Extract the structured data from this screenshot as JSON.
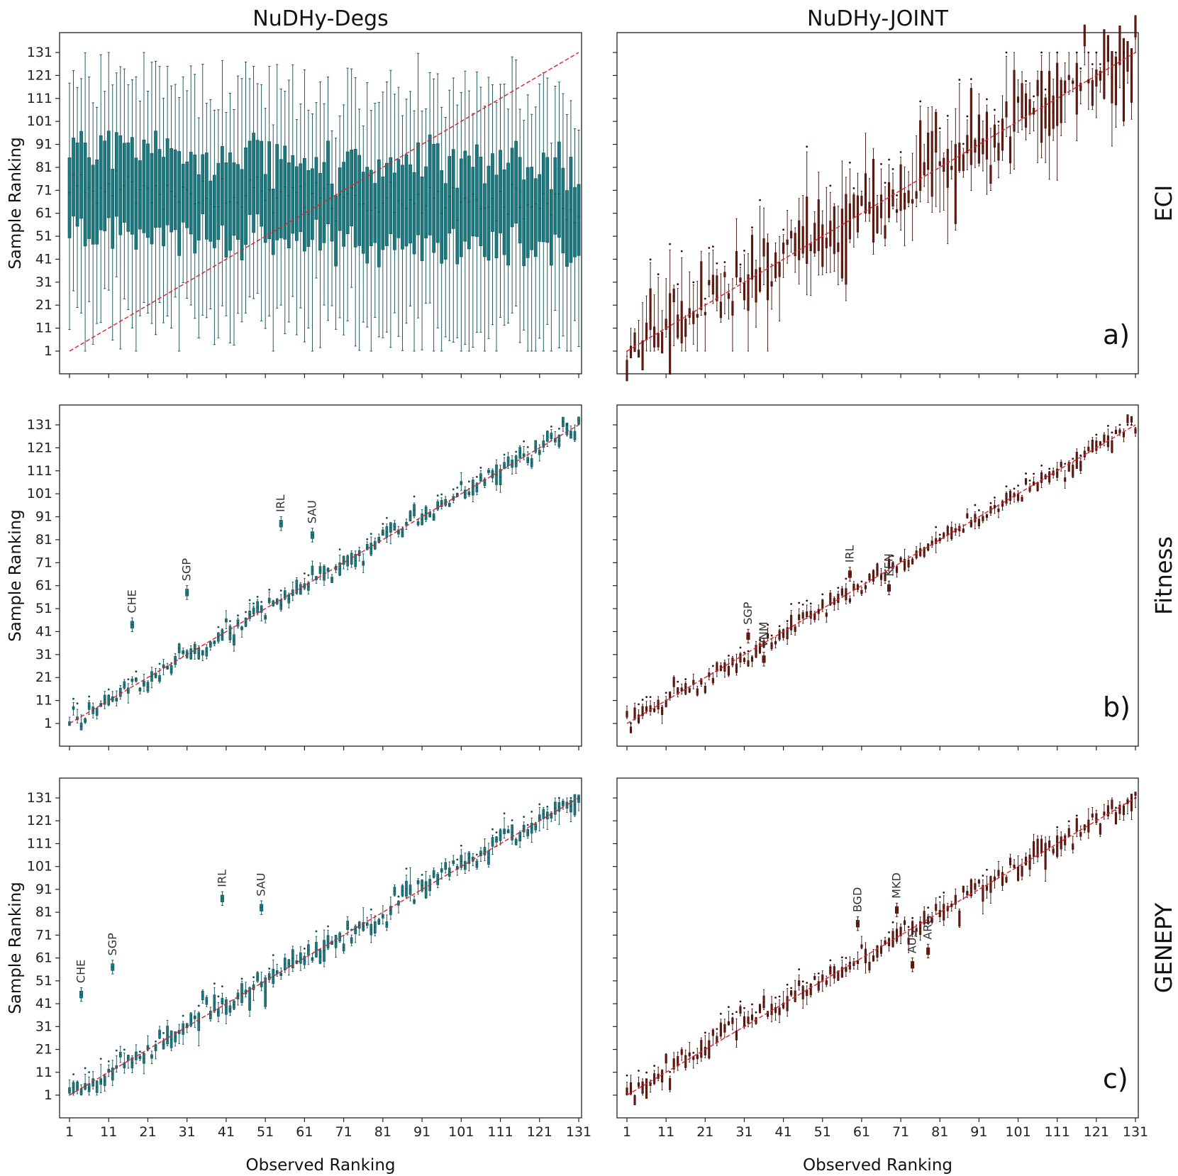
{
  "figure": {
    "column_titles": [
      "NuDHy-Degs",
      "NuDHy-JOINT"
    ],
    "row_labels": [
      "ECI",
      "Fitness",
      "GENEPY"
    ],
    "xlabel": "Observed Ranking",
    "ylabel": "Sample Ranking",
    "ticks": [
      "1",
      "11",
      "21",
      "31",
      "41",
      "51",
      "61",
      "71",
      "81",
      "91",
      "101",
      "111",
      "121",
      "131"
    ],
    "colors": {
      "degs": "#1a7a80",
      "joint": "#6b1a0f",
      "diagonal": "#e0202e"
    }
  },
  "chart_data": [
    {
      "type": "box",
      "panel": "ECI / NuDHy-Degs",
      "xlabel": "",
      "ylabel": "Sample Ranking",
      "xlim": [
        1,
        131
      ],
      "ylim": [
        1,
        131
      ],
      "reference_line": "y = x",
      "annotations": [],
      "summary": "Near-random sampling: boxes span roughly 45–95 with whiskers from ~1 to ~131 for every observed rank."
    },
    {
      "type": "box",
      "panel": "ECI / NuDHy-JOINT",
      "xlabel": "",
      "ylabel": "",
      "xlim": [
        1,
        131
      ],
      "ylim": [
        1,
        131
      ],
      "reference_line": "y = x",
      "panel_letter": "a)",
      "annotations": [],
      "summary": "Samples follow the diagonal with moderate spread (about ±10 ranks)."
    },
    {
      "type": "box",
      "panel": "Fitness / NuDHy-Degs",
      "xlabel": "",
      "ylabel": "Sample Ranking",
      "xlim": [
        1,
        131
      ],
      "ylim": [
        1,
        131
      ],
      "reference_line": "y = x",
      "annotations": [
        {
          "text": "CHE",
          "x": 17,
          "y": 44
        },
        {
          "text": "SGP",
          "x": 31,
          "y": 58
        },
        {
          "text": "IRL",
          "x": 55,
          "y": 88
        },
        {
          "text": "SAU",
          "x": 63,
          "y": 83
        }
      ]
    },
    {
      "type": "box",
      "panel": "Fitness / NuDHy-JOINT",
      "xlabel": "",
      "ylabel": "",
      "xlim": [
        1,
        131
      ],
      "ylim": [
        1,
        131
      ],
      "reference_line": "y = x",
      "panel_letter": "b)",
      "annotations": [
        {
          "text": "SGP",
          "x": 32,
          "y": 39
        },
        {
          "text": "VNM",
          "x": 36,
          "y": 29
        },
        {
          "text": "IRL",
          "x": 58,
          "y": 66
        },
        {
          "text": "KEN",
          "x": 68,
          "y": 60
        }
      ]
    },
    {
      "type": "box",
      "panel": "GENEPY / NuDHy-Degs",
      "xlabel": "Observed Ranking",
      "ylabel": "Sample Ranking",
      "xlim": [
        1,
        131
      ],
      "ylim": [
        1,
        131
      ],
      "reference_line": "y = x",
      "annotations": [
        {
          "text": "CHE",
          "x": 4,
          "y": 45
        },
        {
          "text": "SGP",
          "x": 12,
          "y": 57
        },
        {
          "text": "IRL",
          "x": 40,
          "y": 87
        },
        {
          "text": "SAU",
          "x": 50,
          "y": 83
        }
      ]
    },
    {
      "type": "box",
      "panel": "GENEPY / NuDHy-JOINT",
      "xlabel": "Observed Ranking",
      "ylabel": "",
      "xlim": [
        1,
        131
      ],
      "ylim": [
        1,
        131
      ],
      "reference_line": "y = x",
      "panel_letter": "c)",
      "annotations": [
        {
          "text": "BGD",
          "x": 60,
          "y": 76
        },
        {
          "text": "MKD",
          "x": 70,
          "y": 82
        },
        {
          "text": "AUS",
          "x": 74,
          "y": 58
        },
        {
          "text": "ARG",
          "x": 78,
          "y": 64
        }
      ]
    }
  ]
}
